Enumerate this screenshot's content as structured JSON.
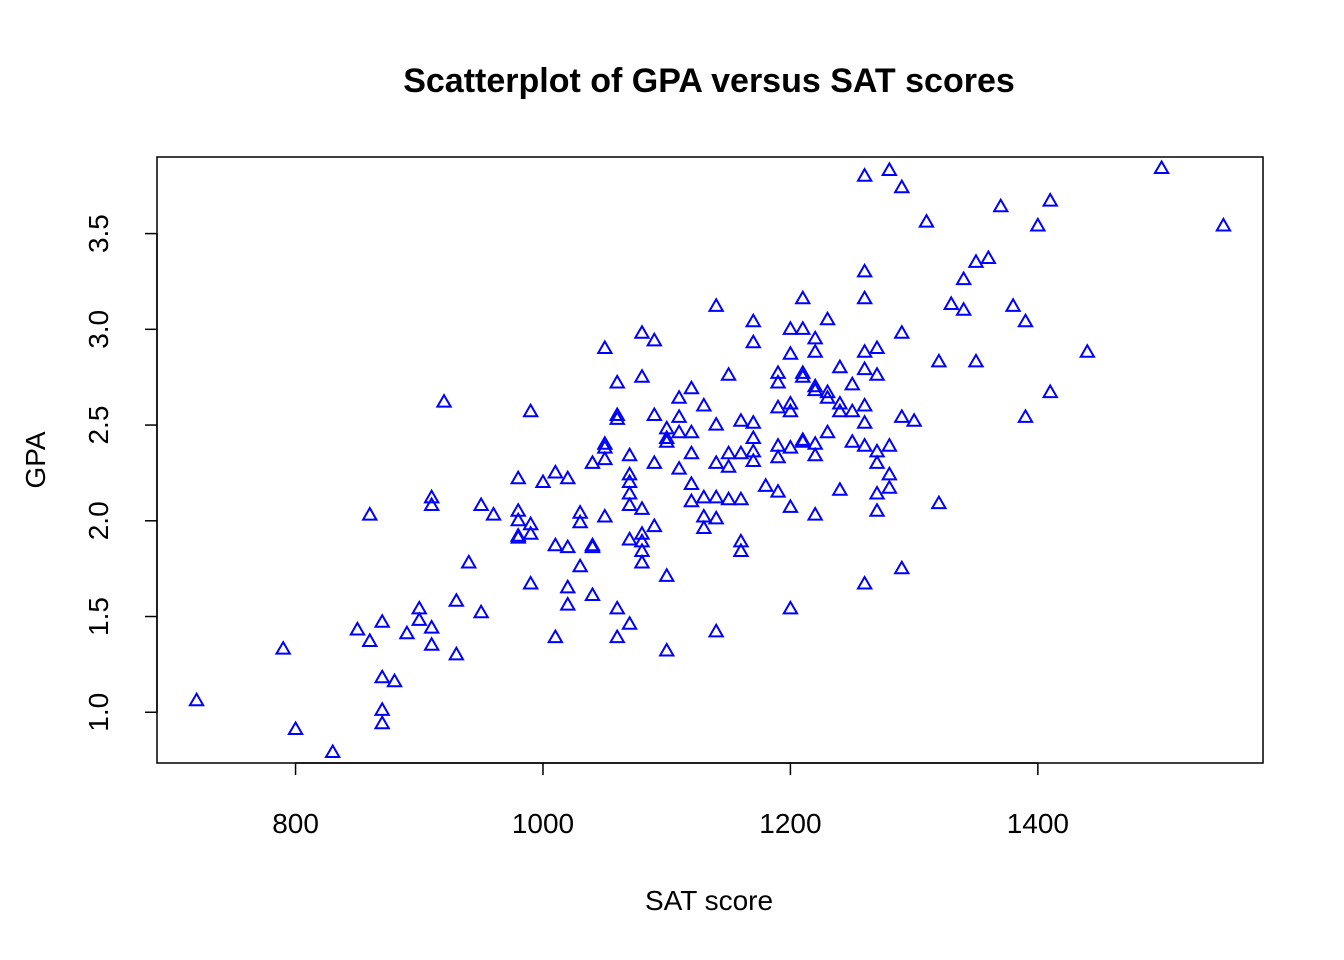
{
  "chart_data": {
    "type": "scatter",
    "title": "Scatterplot of GPA versus SAT scores",
    "xlabel": "SAT score",
    "ylabel": "GPA",
    "xlim": [
      688,
      1582
    ],
    "ylim": [
      0.735,
      3.9
    ],
    "x_ticks": [
      800,
      1000,
      1200,
      1400
    ],
    "y_ticks": [
      1.0,
      1.5,
      2.0,
      2.5,
      3.0,
      3.5
    ],
    "x_tick_labels": [
      "800",
      "1000",
      "1200",
      "1400"
    ],
    "y_tick_labels": [
      "1.0",
      "1.5",
      "2.0",
      "2.5",
      "3.0",
      "3.5"
    ],
    "marker": "triangle-open",
    "point_color": "#0000FF",
    "grid": false,
    "series": [
      {
        "points": [
          [
            720,
            1.06
          ],
          [
            790,
            1.33
          ],
          [
            800,
            0.91
          ],
          [
            830,
            0.79
          ],
          [
            850,
            1.43
          ],
          [
            860,
            1.37
          ],
          [
            860,
            2.03
          ],
          [
            870,
            1.47
          ],
          [
            870,
            1.18
          ],
          [
            870,
            1.01
          ],
          [
            870,
            0.94
          ],
          [
            880,
            1.16
          ],
          [
            890,
            1.41
          ],
          [
            900,
            1.48
          ],
          [
            900,
            1.54
          ],
          [
            910,
            1.35
          ],
          [
            910,
            1.44
          ],
          [
            910,
            2.12
          ],
          [
            910,
            2.08
          ],
          [
            920,
            2.62
          ],
          [
            930,
            1.58
          ],
          [
            930,
            1.3
          ],
          [
            940,
            1.78
          ],
          [
            950,
            2.08
          ],
          [
            950,
            1.52
          ],
          [
            960,
            2.03
          ],
          [
            980,
            2.22
          ],
          [
            980,
            2.05
          ],
          [
            980,
            2.0
          ],
          [
            980,
            1.92
          ],
          [
            980,
            1.91
          ],
          [
            990,
            2.57
          ],
          [
            990,
            1.98
          ],
          [
            990,
            1.93
          ],
          [
            990,
            1.67
          ],
          [
            1000,
            2.2
          ],
          [
            1010,
            2.25
          ],
          [
            1010,
            1.87
          ],
          [
            1010,
            1.39
          ],
          [
            1020,
            2.22
          ],
          [
            1020,
            1.86
          ],
          [
            1020,
            1.65
          ],
          [
            1020,
            1.56
          ],
          [
            1030,
            2.04
          ],
          [
            1030,
            1.99
          ],
          [
            1030,
            1.76
          ],
          [
            1040,
            2.3
          ],
          [
            1040,
            1.87
          ],
          [
            1040,
            1.86
          ],
          [
            1040,
            1.61
          ],
          [
            1050,
            2.9
          ],
          [
            1050,
            2.4
          ],
          [
            1050,
            2.38
          ],
          [
            1050,
            2.32
          ],
          [
            1050,
            2.02
          ],
          [
            1060,
            2.72
          ],
          [
            1060,
            2.55
          ],
          [
            1060,
            2.53
          ],
          [
            1060,
            1.54
          ],
          [
            1060,
            1.39
          ],
          [
            1070,
            2.34
          ],
          [
            1070,
            2.24
          ],
          [
            1070,
            2.2
          ],
          [
            1070,
            2.14
          ],
          [
            1070,
            2.08
          ],
          [
            1070,
            1.9
          ],
          [
            1070,
            1.46
          ],
          [
            1080,
            2.98
          ],
          [
            1080,
            2.75
          ],
          [
            1080,
            2.06
          ],
          [
            1080,
            1.93
          ],
          [
            1080,
            1.89
          ],
          [
            1080,
            1.84
          ],
          [
            1080,
            1.78
          ],
          [
            1090,
            2.94
          ],
          [
            1090,
            2.55
          ],
          [
            1090,
            2.3
          ],
          [
            1090,
            1.97
          ],
          [
            1100,
            2.48
          ],
          [
            1100,
            2.43
          ],
          [
            1100,
            2.41
          ],
          [
            1100,
            1.71
          ],
          [
            1100,
            1.32
          ],
          [
            1110,
            2.64
          ],
          [
            1110,
            2.54
          ],
          [
            1110,
            2.46
          ],
          [
            1110,
            2.27
          ],
          [
            1120,
            2.69
          ],
          [
            1120,
            2.46
          ],
          [
            1120,
            2.35
          ],
          [
            1120,
            2.19
          ],
          [
            1120,
            2.1
          ],
          [
            1130,
            2.6
          ],
          [
            1130,
            2.12
          ],
          [
            1130,
            2.02
          ],
          [
            1130,
            1.96
          ],
          [
            1140,
            3.12
          ],
          [
            1140,
            2.5
          ],
          [
            1140,
            2.3
          ],
          [
            1140,
            2.12
          ],
          [
            1140,
            2.01
          ],
          [
            1140,
            1.42
          ],
          [
            1150,
            2.76
          ],
          [
            1150,
            2.35
          ],
          [
            1150,
            2.28
          ],
          [
            1150,
            2.11
          ],
          [
            1160,
            2.52
          ],
          [
            1160,
            2.35
          ],
          [
            1160,
            2.11
          ],
          [
            1160,
            1.89
          ],
          [
            1160,
            1.84
          ],
          [
            1170,
            3.04
          ],
          [
            1170,
            2.93
          ],
          [
            1170,
            2.51
          ],
          [
            1170,
            2.43
          ],
          [
            1170,
            2.36
          ],
          [
            1170,
            2.31
          ],
          [
            1180,
            2.18
          ],
          [
            1190,
            2.77
          ],
          [
            1190,
            2.72
          ],
          [
            1190,
            2.59
          ],
          [
            1190,
            2.39
          ],
          [
            1190,
            2.33
          ],
          [
            1190,
            2.15
          ],
          [
            1200,
            3.0
          ],
          [
            1200,
            2.87
          ],
          [
            1200,
            2.61
          ],
          [
            1200,
            2.57
          ],
          [
            1200,
            2.38
          ],
          [
            1200,
            2.07
          ],
          [
            1200,
            1.54
          ],
          [
            1210,
            3.16
          ],
          [
            1210,
            3.0
          ],
          [
            1210,
            2.77
          ],
          [
            1210,
            2.75
          ],
          [
            1210,
            2.41
          ],
          [
            1210,
            2.42
          ],
          [
            1220,
            2.95
          ],
          [
            1220,
            2.88
          ],
          [
            1220,
            2.7
          ],
          [
            1220,
            2.68
          ],
          [
            1220,
            2.4
          ],
          [
            1220,
            2.34
          ],
          [
            1220,
            2.03
          ],
          [
            1230,
            3.05
          ],
          [
            1230,
            2.67
          ],
          [
            1230,
            2.64
          ],
          [
            1230,
            2.46
          ],
          [
            1240,
            2.8
          ],
          [
            1240,
            2.61
          ],
          [
            1240,
            2.57
          ],
          [
            1240,
            2.16
          ],
          [
            1250,
            2.71
          ],
          [
            1250,
            2.57
          ],
          [
            1250,
            2.41
          ],
          [
            1260,
            3.8
          ],
          [
            1260,
            3.3
          ],
          [
            1260,
            3.16
          ],
          [
            1260,
            2.88
          ],
          [
            1260,
            2.79
          ],
          [
            1260,
            2.6
          ],
          [
            1260,
            2.51
          ],
          [
            1260,
            2.39
          ],
          [
            1260,
            1.67
          ],
          [
            1270,
            2.9
          ],
          [
            1270,
            2.76
          ],
          [
            1270,
            2.36
          ],
          [
            1270,
            2.3
          ],
          [
            1270,
            2.14
          ],
          [
            1270,
            2.05
          ],
          [
            1280,
            3.83
          ],
          [
            1280,
            2.39
          ],
          [
            1280,
            2.24
          ],
          [
            1280,
            2.17
          ],
          [
            1290,
            3.74
          ],
          [
            1290,
            2.98
          ],
          [
            1290,
            2.54
          ],
          [
            1290,
            1.75
          ],
          [
            1300,
            2.52
          ],
          [
            1310,
            3.56
          ],
          [
            1320,
            2.83
          ],
          [
            1320,
            2.09
          ],
          [
            1330,
            3.13
          ],
          [
            1340,
            3.26
          ],
          [
            1340,
            3.1
          ],
          [
            1350,
            3.35
          ],
          [
            1350,
            2.83
          ],
          [
            1360,
            3.37
          ],
          [
            1370,
            3.64
          ],
          [
            1380,
            3.12
          ],
          [
            1390,
            3.04
          ],
          [
            1390,
            2.54
          ],
          [
            1400,
            3.54
          ],
          [
            1410,
            3.67
          ],
          [
            1410,
            2.67
          ],
          [
            1440,
            2.88
          ],
          [
            1500,
            3.84
          ],
          [
            1550,
            3.54
          ]
        ]
      }
    ]
  }
}
